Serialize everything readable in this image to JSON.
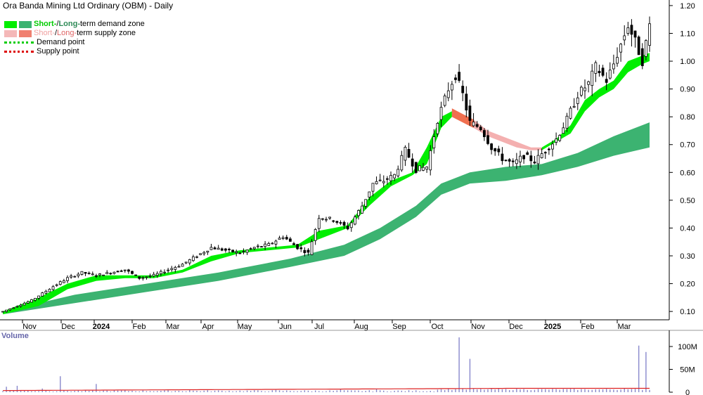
{
  "chart_data": {
    "type": "candlestick",
    "title": "Ora Banda Mining Ltd Ordinary (OBM) - Daily",
    "legend": {
      "demand_zone": {
        "short": "Short-",
        "sep": " / ",
        "long": "Long-",
        "rest": "term demand zone"
      },
      "supply_zone": {
        "short": "Short-",
        "sep": " / ",
        "long": "Long-",
        "rest": "term supply zone"
      },
      "demand_point": "Demand point",
      "supply_point": "Supply point"
    },
    "x_ticks": [
      "Nov",
      "Dec",
      "2024",
      "Feb",
      "Mar",
      "Apr",
      "May",
      "Jun",
      "Jul",
      "Aug",
      "Sep",
      "Oct",
      "Nov",
      "Dec",
      "2025",
      "Feb",
      "Mar"
    ],
    "y_ticks": [
      "1.20",
      "1.10",
      "1.00",
      "0.90",
      "0.80",
      "0.70",
      "0.60",
      "0.50",
      "0.40",
      "0.30",
      "0.20",
      "0.10"
    ],
    "ylim": [
      0.07,
      1.22
    ],
    "price_series": {
      "name": "OBM",
      "points": [
        [
          0,
          0.1
        ],
        [
          8,
          0.14
        ],
        [
          14,
          0.19
        ],
        [
          18,
          0.22
        ],
        [
          22,
          0.24
        ],
        [
          26,
          0.23
        ],
        [
          30,
          0.24
        ],
        [
          34,
          0.25
        ],
        [
          38,
          0.22
        ],
        [
          42,
          0.23
        ],
        [
          46,
          0.25
        ],
        [
          50,
          0.27
        ],
        [
          54,
          0.3
        ],
        [
          58,
          0.33
        ],
        [
          62,
          0.32
        ],
        [
          66,
          0.31
        ],
        [
          70,
          0.33
        ],
        [
          74,
          0.34
        ],
        [
          78,
          0.37
        ],
        [
          82,
          0.33
        ],
        [
          85,
          0.31
        ],
        [
          88,
          0.44
        ],
        [
          92,
          0.43
        ],
        [
          96,
          0.4
        ],
        [
          100,
          0.48
        ],
        [
          103,
          0.56
        ],
        [
          106,
          0.57
        ],
        [
          109,
          0.59
        ],
        [
          112,
          0.68
        ],
        [
          115,
          0.61
        ],
        [
          118,
          0.62
        ],
        [
          121,
          0.79
        ],
        [
          124,
          0.9
        ],
        [
          126,
          0.95
        ],
        [
          128,
          0.88
        ],
        [
          130,
          0.78
        ],
        [
          133,
          0.76
        ],
        [
          136,
          0.69
        ],
        [
          139,
          0.65
        ],
        [
          142,
          0.63
        ],
        [
          145,
          0.66
        ],
        [
          148,
          0.64
        ],
        [
          151,
          0.68
        ],
        [
          154,
          0.72
        ],
        [
          157,
          0.79
        ],
        [
          160,
          0.88
        ],
        [
          163,
          0.92
        ],
        [
          165,
          0.98
        ],
        [
          168,
          0.93
        ],
        [
          170,
          0.99
        ],
        [
          172,
          1.06
        ],
        [
          174,
          1.13
        ],
        [
          176,
          1.07
        ],
        [
          178,
          1.0
        ],
        [
          180,
          1.13
        ]
      ]
    },
    "short_term_demand_zone": [
      [
        0,
        0.09,
        0.1
      ],
      [
        10,
        0.12,
        0.15
      ],
      [
        18,
        0.18,
        0.2
      ],
      [
        26,
        0.21,
        0.23
      ],
      [
        34,
        0.22,
        0.23
      ],
      [
        42,
        0.22,
        0.23
      ],
      [
        50,
        0.24,
        0.25
      ],
      [
        58,
        0.28,
        0.3
      ],
      [
        66,
        0.31,
        0.32
      ],
      [
        74,
        0.32,
        0.33
      ],
      [
        82,
        0.33,
        0.34
      ],
      [
        88,
        0.36,
        0.39
      ],
      [
        96,
        0.4,
        0.41
      ],
      [
        102,
        0.48,
        0.51
      ],
      [
        108,
        0.55,
        0.57
      ],
      [
        114,
        0.59,
        0.6
      ],
      [
        118,
        0.63,
        0.69
      ],
      [
        122,
        0.76,
        0.8
      ],
      [
        125,
        0.8,
        0.82
      ]
    ],
    "short_term_demand_zone_late": [
      [
        150,
        0.68,
        0.69
      ],
      [
        154,
        0.71,
        0.72
      ],
      [
        158,
        0.74,
        0.77
      ],
      [
        162,
        0.82,
        0.86
      ],
      [
        166,
        0.87,
        0.9
      ],
      [
        170,
        0.9,
        0.93
      ],
      [
        174,
        0.96,
        1.0
      ],
      [
        178,
        0.99,
        1.02
      ],
      [
        180,
        1.0,
        1.03
      ]
    ],
    "short_term_supply_zone": [
      [
        125,
        0.8,
        0.83
      ],
      [
        128,
        0.78,
        0.81
      ],
      [
        131,
        0.76,
        0.79
      ],
      [
        135,
        0.73,
        0.75
      ],
      [
        139,
        0.71,
        0.73
      ],
      [
        143,
        0.69,
        0.71
      ],
      [
        147,
        0.68,
        0.69
      ],
      [
        150,
        0.68,
        0.69
      ]
    ],
    "long_term_demand_zone": [
      [
        0,
        0.09,
        0.1
      ],
      [
        20,
        0.13,
        0.16
      ],
      [
        40,
        0.17,
        0.2
      ],
      [
        60,
        0.21,
        0.24
      ],
      [
        80,
        0.26,
        0.29
      ],
      [
        95,
        0.3,
        0.34
      ],
      [
        105,
        0.36,
        0.4
      ],
      [
        115,
        0.44,
        0.48
      ],
      [
        122,
        0.52,
        0.56
      ],
      [
        130,
        0.56,
        0.6
      ],
      [
        140,
        0.57,
        0.62
      ],
      [
        150,
        0.59,
        0.63
      ],
      [
        160,
        0.62,
        0.67
      ],
      [
        170,
        0.66,
        0.73
      ],
      [
        180,
        0.69,
        0.78
      ]
    ],
    "volume": {
      "y_ticks": [
        "100M",
        "50M",
        "0"
      ],
      "ylim": [
        0,
        120
      ],
      "average": 6,
      "spikes": [
        [
          1,
          12
        ],
        [
          4,
          14
        ],
        [
          11,
          8
        ],
        [
          16,
          35
        ],
        [
          26,
          18
        ],
        [
          52,
          6
        ],
        [
          76,
          5
        ],
        [
          94,
          6
        ],
        [
          104,
          7
        ],
        [
          127,
          120
        ],
        [
          130,
          73
        ],
        [
          144,
          6
        ],
        [
          173,
          8
        ],
        [
          177,
          102
        ],
        [
          179,
          88
        ]
      ]
    }
  }
}
